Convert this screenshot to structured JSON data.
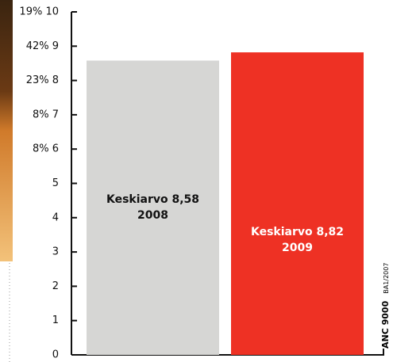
{
  "chart_data": {
    "type": "bar",
    "categories": [
      "2008",
      "2009"
    ],
    "values": [
      8.58,
      8.82
    ],
    "value_labels": [
      "Keskiarvo 8,58",
      "Keskiarvo 8,82"
    ],
    "colors": [
      "#d6d6d4",
      "#ee3124"
    ],
    "label_colors": [
      "#111111",
      "#ffffff"
    ],
    "ylim": [
      0,
      10
    ],
    "yticks": [
      0,
      1,
      2,
      3,
      4,
      5,
      {
        "value": 6,
        "label": "8% 6"
      },
      {
        "value": 7,
        "label": "8% 7"
      },
      {
        "value": 8,
        "label": "23% 8"
      },
      {
        "value": 9,
        "label": "42% 9"
      },
      {
        "value": 10,
        "label": "19% 10"
      }
    ],
    "source": "ANC 9000",
    "source_code": "BA1/2007"
  }
}
